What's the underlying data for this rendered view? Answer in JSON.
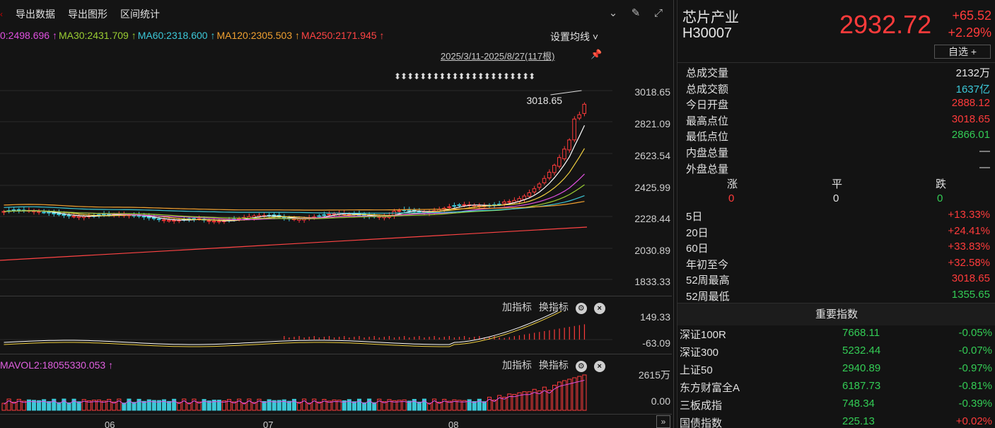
{
  "toolbar": {
    "items": [
      "导出数据",
      "导出图形",
      "区间统计"
    ]
  },
  "ma_line": [
    {
      "text": "0:2498.696 ↑",
      "color": "#e050e0"
    },
    {
      "text": "MA30:2431.709 ↑",
      "color": "#9acd32"
    },
    {
      "text": "MA60:2318.600 ↑",
      "color": "#3cc8d8"
    },
    {
      "text": "MA120:2305.503 ↑",
      "color": "#f0a030"
    },
    {
      "text": "MA250:2171.945 ↑",
      "color": "#ff4444"
    }
  ],
  "ma_settings": "设置均线 ˅",
  "date_range": "2025/3/11-2025/8/27(117根)",
  "arrows_row": "⬍⬍⬍⬍⬍⬍⬍⬍⬍⬍⬍⬍⬍⬍⬍⬍⬍⬍⬍⬍⬍⬍",
  "price_axis": [
    "3018.65",
    "2821.09",
    "2623.54",
    "2425.99",
    "2228.44",
    "2030.89",
    "1833.33"
  ],
  "high_annotation": "3018.65",
  "indicator_tools": {
    "add": "加指标",
    "swap": "换指标"
  },
  "macd_axis": [
    "149.33",
    "-63.09"
  ],
  "vol_axis": [
    "2615万",
    "0.00"
  ],
  "mavol_text": "MAVOL2:18055330.053 ↑",
  "months": [
    "06",
    "07",
    "08"
  ],
  "quote": {
    "name": "芯片产业",
    "code": "H30007",
    "price": "2932.72",
    "change": "+65.52",
    "change_pct": "+2.29%",
    "watchlist_btn": "自选 +"
  },
  "stats": [
    {
      "label": "总成交量",
      "value": "2132万",
      "color": "white"
    },
    {
      "label": "总成交额",
      "value": "1637亿",
      "color": "cyan"
    },
    {
      "label": "今日开盘",
      "value": "2888.12",
      "color": "red"
    },
    {
      "label": "最高点位",
      "value": "3018.65",
      "color": "red"
    },
    {
      "label": "最低点位",
      "value": "2866.01",
      "color": "green"
    },
    {
      "label": "内盘总量",
      "value": "—",
      "color": "white"
    },
    {
      "label": "外盘总量",
      "value": "—",
      "color": "white"
    }
  ],
  "updown": {
    "labels": [
      "涨",
      "平",
      "跌"
    ],
    "values": [
      "0",
      "0",
      "0"
    ]
  },
  "periods": [
    {
      "label": "5日",
      "value": "+13.33%",
      "color": "red"
    },
    {
      "label": "20日",
      "value": "+24.41%",
      "color": "red"
    },
    {
      "label": "60日",
      "value": "+33.83%",
      "color": "red"
    },
    {
      "label": "年初至今",
      "value": "+32.58%",
      "color": "red"
    },
    {
      "label": "52周最高",
      "value": "3018.65",
      "color": "red"
    },
    {
      "label": "52周最低",
      "value": "1355.65",
      "color": "green"
    }
  ],
  "key_indices_title": "重要指数",
  "indices": [
    {
      "name": "深证100R",
      "price": "7668.11",
      "change": "-0.05%",
      "color": "green"
    },
    {
      "name": "深证300",
      "price": "5232.44",
      "change": "-0.07%",
      "color": "green"
    },
    {
      "name": "上证50",
      "price": "2940.89",
      "change": "-0.97%",
      "color": "green"
    },
    {
      "name": "东方财富全A",
      "price": "6187.73",
      "change": "-0.81%",
      "color": "green"
    },
    {
      "name": "三板成指",
      "price": "748.34",
      "change": "-0.39%",
      "color": "green"
    },
    {
      "name": "国债指数",
      "price": "225.13",
      "change": "+0.02%",
      "color": "red"
    }
  ],
  "chart_data": {
    "type": "candlestick",
    "ylim": [
      1833.33,
      3018.65
    ],
    "last_close": 2932.72,
    "high": 3018.65
  }
}
